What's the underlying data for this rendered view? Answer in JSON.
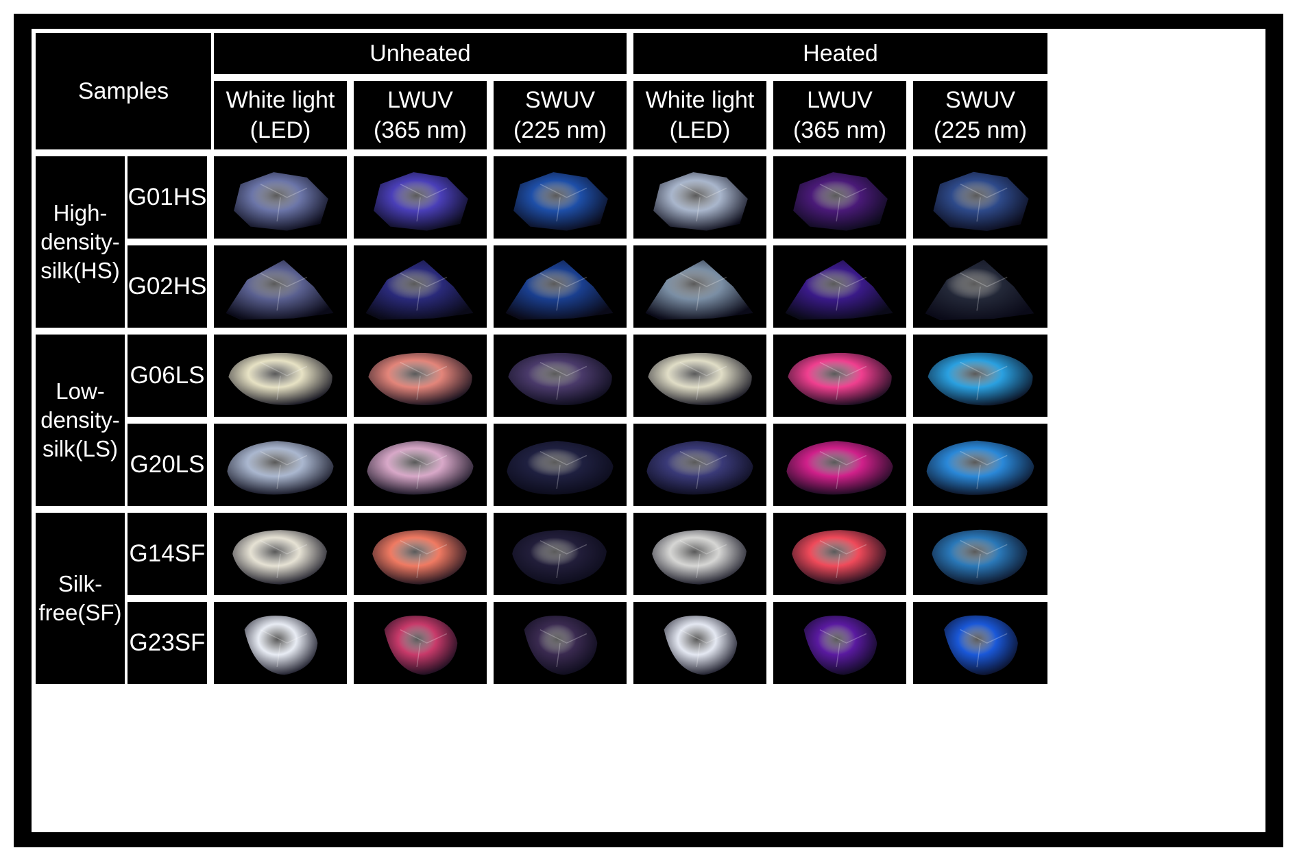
{
  "header": {
    "samples": "Samples",
    "unheated": "Unheated",
    "heated": "Heated",
    "conditions": [
      {
        "line1": "White light",
        "line2": "(LED)"
      },
      {
        "line1": "LWUV",
        "line2": "(365 nm)"
      },
      {
        "line1": "SWUV",
        "line2": "(225 nm)"
      },
      {
        "line1": "White light",
        "line2": "(LED)"
      },
      {
        "line1": "LWUV",
        "line2": "(365 nm)"
      },
      {
        "line1": "SWUV",
        "line2": "(225 nm)"
      }
    ]
  },
  "groups": [
    {
      "lines": [
        "High-",
        "density-",
        "silk",
        "(HS)"
      ]
    },
    {
      "lines": [
        "Low-",
        "density-",
        "silk",
        "(LS)"
      ]
    },
    {
      "lines": [
        "Silk-",
        "free",
        "(SF)"
      ]
    }
  ],
  "samples": [
    {
      "code": "G01HS",
      "colors": [
        "#6b75a8",
        "#4a3fb8",
        "#1e4fa8",
        "#a9b6cc",
        "#4a1a78",
        "#2e4a8a"
      ]
    },
    {
      "code": "G02HS",
      "colors": [
        "#5a6090",
        "#2a2a7a",
        "#1a3f8f",
        "#7a8ea4",
        "#3a1a88",
        "#232838"
      ]
    },
    {
      "code": "G06LS",
      "colors": [
        "#e7e2c4",
        "#e3857a",
        "#4a3a6a",
        "#e0ddc6",
        "#f03f8f",
        "#2aa0e0"
      ]
    },
    {
      "code": "G20LS",
      "colors": [
        "#aab7cf",
        "#d8a8c8",
        "#1f2040",
        "#3a3a78",
        "#d0208a",
        "#2a88d8"
      ]
    },
    {
      "code": "G14SF",
      "colors": [
        "#e6e2d4",
        "#f07a62",
        "#221e3a",
        "#d6d6d4",
        "#f04a5a",
        "#2a78b8"
      ]
    },
    {
      "code": "G23SF",
      "colors": [
        "#e8ecf4",
        "#c83a6a",
        "#3a2a50",
        "#e4e8f2",
        "#5a1aa0",
        "#1a58d8"
      ]
    }
  ]
}
